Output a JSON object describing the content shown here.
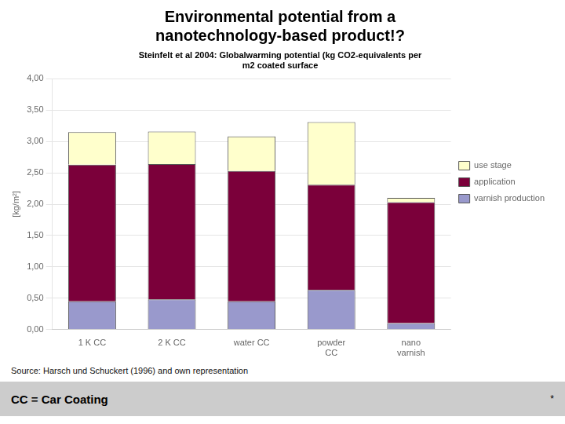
{
  "chart_data": {
    "type": "bar",
    "stacked": true,
    "title": [
      "Environmental potential from a",
      "nanotechnology-based product!?"
    ],
    "subtitle": "Steinfelt et al 2004: Globalwarming potential (kg CO2-equivalents per\nm2 coated surface",
    "categories": [
      "1 K CC",
      "2 K CC",
      "water CC",
      "powder\nCC",
      "nano\nvarnish"
    ],
    "series": [
      {
        "name": "varnish production",
        "color": "#9999cc",
        "values": [
          0.45,
          0.48,
          0.45,
          0.63,
          0.1
        ]
      },
      {
        "name": "application",
        "color": "#7b003a",
        "values": [
          2.18,
          2.16,
          2.08,
          1.68,
          1.93
        ]
      },
      {
        "name": "use stage",
        "color": "#ffffcc",
        "values": [
          0.52,
          0.52,
          0.55,
          1.0,
          0.07
        ]
      }
    ],
    "ylabel": "[kg/m²]",
    "ylim": [
      0,
      4.0
    ],
    "yticks": [
      {
        "value": 0.0,
        "label": "0,00"
      },
      {
        "value": 0.5,
        "label": "0,50"
      },
      {
        "value": 1.0,
        "label": "1,00"
      },
      {
        "value": 1.5,
        "label": "1,50"
      },
      {
        "value": 2.0,
        "label": "2,00"
      },
      {
        "value": 2.5,
        "label": "2,50"
      },
      {
        "value": 3.0,
        "label": "3,00"
      },
      {
        "value": 3.5,
        "label": "3,50"
      },
      {
        "value": 4.0,
        "label": "4,00"
      }
    ],
    "grid": true,
    "legend": "right",
    "annotations": [
      "Source: Harsch und Schuckert (1996) and own representation",
      "CC = Car Coating",
      "*"
    ]
  }
}
